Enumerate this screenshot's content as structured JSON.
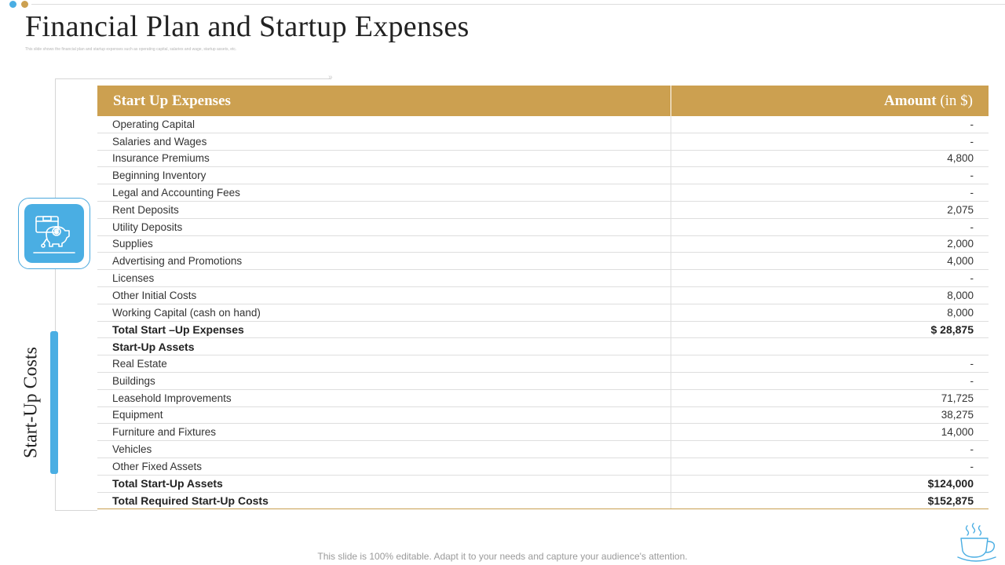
{
  "colors": {
    "accent_blue": "#4aaee3",
    "accent_gold": "#cca050"
  },
  "header": {
    "title": "Financial Plan and Startup Expenses",
    "subtitle": "This slide shows the financial plan and startup expenses such as operating capital, salaries and wage, startup assets, etc."
  },
  "side": {
    "label": "Start-Up Costs",
    "icon": "piggy-bank-money-icon"
  },
  "table": {
    "header": {
      "col1": "Start Up Expenses",
      "col2": "Amount",
      "col2_unit": "(in $)"
    },
    "rows": [
      {
        "label": "Operating Capital",
        "value": "-"
      },
      {
        "label": "Salaries and Wages",
        "value": "-"
      },
      {
        "label": "Insurance Premiums",
        "value": "4,800"
      },
      {
        "label": "Beginning Inventory",
        "value": "-"
      },
      {
        "label": "Legal and Accounting Fees",
        "value": "-"
      },
      {
        "label": "Rent Deposits",
        "value": "2,075"
      },
      {
        "label": "Utility Deposits",
        "value": "-"
      },
      {
        "label": "Supplies",
        "value": "2,000"
      },
      {
        "label": "Advertising and Promotions",
        "value": "4,000"
      },
      {
        "label": "Licenses",
        "value": "-"
      },
      {
        "label": "Other Initial Costs",
        "value": "8,000"
      },
      {
        "label": "Working Capital (cash on hand)",
        "value": "8,000"
      },
      {
        "label": "Total Start –Up Expenses",
        "value": "$ 28,875",
        "bold": true
      },
      {
        "label": "Start-Up Assets",
        "value": "",
        "bold": true
      },
      {
        "label": "Real Estate",
        "value": "-"
      },
      {
        "label": "Buildings",
        "value": "-"
      },
      {
        "label": "Leasehold Improvements",
        "value": "71,725"
      },
      {
        "label": "Equipment",
        "value": "38,275"
      },
      {
        "label": "Furniture and Fixtures",
        "value": "14,000"
      },
      {
        "label": "Vehicles",
        "value": "-"
      },
      {
        "label": "Other Fixed Assets",
        "value": "-"
      },
      {
        "label": "Total Start-Up Assets",
        "value": "$124,000",
        "bold": true
      },
      {
        "label": "Total Required Start-Up Costs",
        "value": "$152,875",
        "bold": true
      }
    ]
  },
  "footer": {
    "note": "This slide is 100% editable. Adapt it to your needs and capture your audience's attention.",
    "icon": "coffee-cup-icon"
  }
}
